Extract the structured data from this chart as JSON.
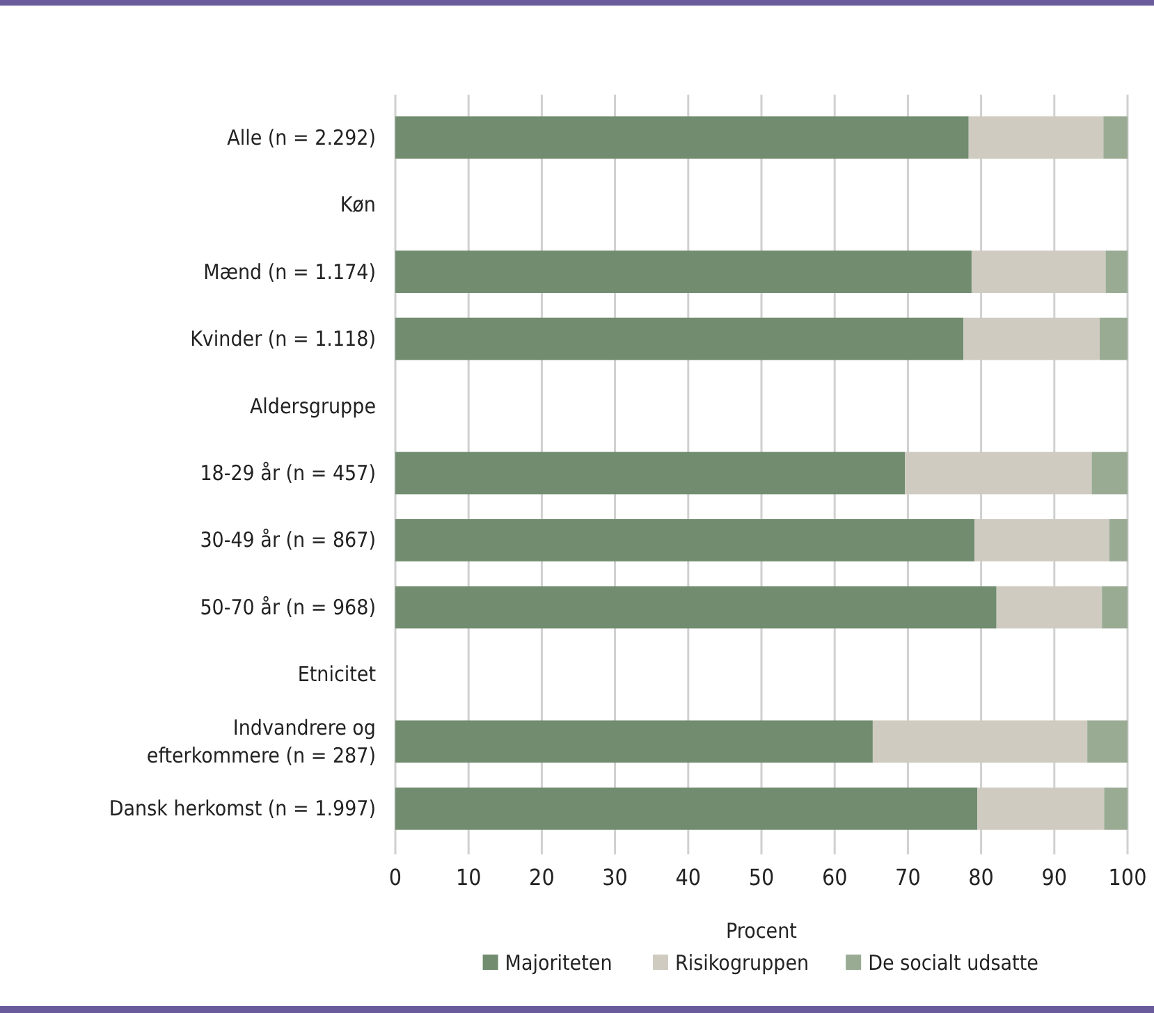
{
  "chart_data": {
    "type": "bar",
    "orientation": "horizontal",
    "stacked": true,
    "xlabel": "Procent",
    "categories": [
      "Alle (n = 2.292)",
      "Køn",
      "Mænd (n = 1.174)",
      "Kvinder (n = 1.118)",
      "Aldersgruppe",
      "18-29 år (n = 457)",
      "30-49 år (n = 867)",
      "50-70 år (n = 968)",
      "Etnicitet",
      "Indvandrere og efterkommere (n = 287)",
      "Dansk herkomst (n = 1.997)"
    ],
    "series": [
      {
        "name": "Majoriteten",
        "color": "#718c6f",
        "values": [
          78.3,
          null,
          78.7,
          77.6,
          null,
          69.6,
          79.1,
          82.1,
          null,
          65.2,
          79.5
        ]
      },
      {
        "name": "Risikogruppen",
        "color": "#cfcbc0",
        "values": [
          18.4,
          null,
          18.3,
          18.6,
          null,
          25.5,
          18.4,
          14.4,
          null,
          29.3,
          17.3
        ]
      },
      {
        "name": "De socialt udsatte",
        "color": "#9aab94",
        "values": [
          3.3,
          null,
          3.0,
          3.8,
          null,
          4.9,
          2.5,
          3.5,
          null,
          5.5,
          3.2
        ]
      }
    ],
    "xlim": [
      0,
      100
    ],
    "xticks": [
      0,
      10,
      20,
      30,
      40,
      50,
      60,
      70,
      80,
      90,
      100
    ],
    "grid": "x",
    "legend": "bottom"
  }
}
